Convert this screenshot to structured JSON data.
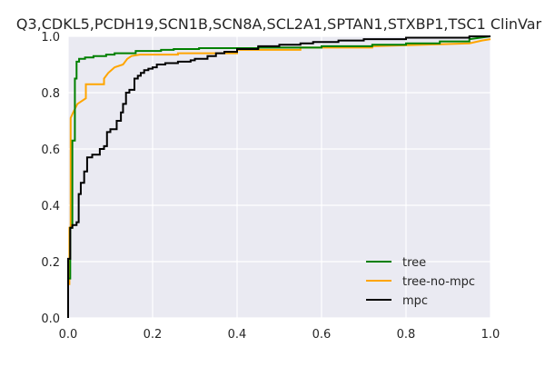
{
  "chart_data": {
    "type": "line",
    "title": "Q3,CDKL5,PCDH19,SCN1B,SCN8A,SCL2A1,SPTAN1,STXBP1,TSC1 ClinVar",
    "xlabel": "",
    "ylabel": "",
    "xlim": [
      0.0,
      1.0
    ],
    "ylim": [
      0.0,
      1.0
    ],
    "x_ticks": [
      "0.0",
      "0.2",
      "0.4",
      "0.6",
      "0.8",
      "1.0"
    ],
    "y_ticks": [
      "0.0",
      "0.2",
      "0.4",
      "0.6",
      "0.8",
      "1.0"
    ],
    "grid": true,
    "legend_position": "lower-right",
    "background_color": "#eaeaf2",
    "grid_color": "#ffffff",
    "series": [
      {
        "name": "tree",
        "color": "#008000",
        "x": [
          0.0,
          0.0,
          0.005,
          0.005,
          0.01,
          0.01,
          0.016,
          0.016,
          0.02,
          0.02,
          0.026,
          0.026,
          0.04,
          0.04,
          0.06,
          0.06,
          0.09,
          0.09,
          0.11,
          0.11,
          0.16,
          0.16,
          0.22,
          0.22,
          0.25,
          0.25,
          0.31,
          0.31,
          0.45,
          0.45,
          0.6,
          0.6,
          0.72,
          0.72,
          0.8,
          0.8,
          0.88,
          0.88,
          0.95,
          0.95,
          1.0
        ],
        "y": [
          0.0,
          0.14,
          0.14,
          0.32,
          0.32,
          0.63,
          0.63,
          0.85,
          0.85,
          0.91,
          0.91,
          0.92,
          0.92,
          0.925,
          0.925,
          0.93,
          0.93,
          0.935,
          0.935,
          0.94,
          0.94,
          0.948,
          0.948,
          0.952,
          0.952,
          0.955,
          0.955,
          0.958,
          0.958,
          0.96,
          0.96,
          0.965,
          0.965,
          0.97,
          0.97,
          0.975,
          0.975,
          0.982,
          0.982,
          0.99,
          1.0
        ]
      },
      {
        "name": "tree-no-mpc",
        "color": "#ffa500",
        "x": [
          0.0,
          0.0,
          0.003,
          0.003,
          0.006,
          0.006,
          0.012,
          0.022,
          0.042,
          0.042,
          0.085,
          0.085,
          0.095,
          0.11,
          0.13,
          0.14,
          0.15,
          0.17,
          0.19,
          0.26,
          0.26,
          0.4,
          0.4,
          0.55,
          0.55,
          0.72,
          0.72,
          0.95,
          0.98,
          1.0
        ],
        "y": [
          0.0,
          0.12,
          0.12,
          0.32,
          0.32,
          0.71,
          0.73,
          0.76,
          0.78,
          0.83,
          0.83,
          0.85,
          0.87,
          0.89,
          0.9,
          0.92,
          0.93,
          0.935,
          0.935,
          0.935,
          0.94,
          0.94,
          0.952,
          0.952,
          0.96,
          0.96,
          0.965,
          0.975,
          0.985,
          0.99
        ]
      },
      {
        "name": "mpc",
        "color": "#000000",
        "x": [
          0.0,
          0.0,
          0.005,
          0.005,
          0.01,
          0.01,
          0.02,
          0.02,
          0.025,
          0.025,
          0.03,
          0.03,
          0.038,
          0.038,
          0.045,
          0.045,
          0.057,
          0.057,
          0.075,
          0.075,
          0.085,
          0.085,
          0.092,
          0.092,
          0.1,
          0.1,
          0.115,
          0.115,
          0.125,
          0.125,
          0.13,
          0.13,
          0.137,
          0.137,
          0.145,
          0.145,
          0.157,
          0.157,
          0.165,
          0.165,
          0.172,
          0.172,
          0.18,
          0.18,
          0.19,
          0.19,
          0.2,
          0.2,
          0.21,
          0.21,
          0.23,
          0.23,
          0.26,
          0.26,
          0.29,
          0.29,
          0.3,
          0.3,
          0.33,
          0.33,
          0.35,
          0.35,
          0.37,
          0.37,
          0.4,
          0.4,
          0.45,
          0.45,
          0.5,
          0.5,
          0.55,
          0.55,
          0.58,
          0.58,
          0.64,
          0.64,
          0.7,
          0.7,
          0.8,
          0.8,
          0.95,
          0.95,
          1.0
        ],
        "y": [
          0.0,
          0.21,
          0.21,
          0.32,
          0.32,
          0.33,
          0.33,
          0.34,
          0.34,
          0.44,
          0.44,
          0.48,
          0.48,
          0.52,
          0.52,
          0.57,
          0.57,
          0.58,
          0.58,
          0.6,
          0.6,
          0.61,
          0.61,
          0.66,
          0.66,
          0.67,
          0.67,
          0.7,
          0.7,
          0.73,
          0.73,
          0.76,
          0.76,
          0.8,
          0.8,
          0.81,
          0.81,
          0.85,
          0.85,
          0.86,
          0.86,
          0.87,
          0.87,
          0.88,
          0.88,
          0.885,
          0.885,
          0.89,
          0.89,
          0.9,
          0.9,
          0.905,
          0.905,
          0.91,
          0.91,
          0.915,
          0.915,
          0.92,
          0.92,
          0.93,
          0.93,
          0.94,
          0.94,
          0.945,
          0.945,
          0.955,
          0.955,
          0.965,
          0.965,
          0.97,
          0.97,
          0.975,
          0.975,
          0.98,
          0.98,
          0.985,
          0.985,
          0.99,
          0.99,
          0.995,
          0.995,
          1.0,
          1.0
        ]
      }
    ]
  }
}
